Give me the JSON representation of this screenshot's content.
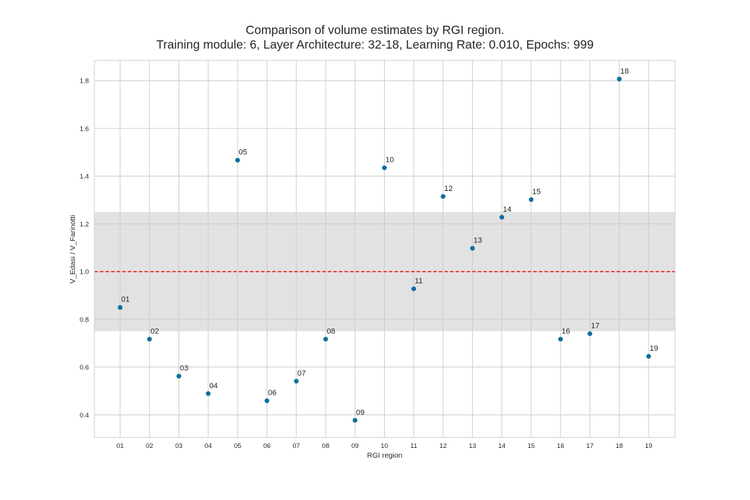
{
  "chart_data": {
    "type": "scatter",
    "title": "Comparison of volume estimates by RGI region.",
    "subtitle": "Training module: 6, Layer Architecture: 32-18, Learning Rate: 0.010, Epochs: 999",
    "xlabel": "RGI region",
    "ylabel": "V_Edasi / V_Farinotti",
    "categories": [
      "01",
      "02",
      "03",
      "04",
      "05",
      "06",
      "07",
      "08",
      "09",
      "10",
      "11",
      "12",
      "13",
      "14",
      "15",
      "16",
      "17",
      "18",
      "19"
    ],
    "values": [
      0.85,
      0.717,
      0.562,
      0.489,
      1.467,
      0.459,
      0.541,
      0.717,
      0.377,
      1.435,
      0.928,
      1.315,
      1.098,
      1.228,
      1.302,
      0.717,
      0.74,
      1.807,
      0.645
    ],
    "point_labels": [
      "01",
      "02",
      "03",
      "04",
      "05",
      "06",
      "07",
      "08",
      "09",
      "10",
      "11",
      "12",
      "13",
      "14",
      "15",
      "16",
      "17",
      "18",
      "19"
    ],
    "ylim": [
      0.305,
      1.885
    ],
    "yticks": [
      "0.4",
      "0.6",
      "0.8",
      "1.0",
      "1.2",
      "1.4",
      "1.6",
      "1.8"
    ],
    "ytick_values": [
      0.4,
      0.6,
      0.8,
      1.0,
      1.2,
      1.4,
      1.6,
      1.8
    ],
    "reference_line": 1.0,
    "shaded_band": [
      0.75,
      1.25
    ],
    "grid": true,
    "colors": {
      "points": "#0d6f9f",
      "reference_line": "#e0281a",
      "band": "#e2e2e2",
      "grid": "#cccccc",
      "frame": "#cccccc"
    }
  }
}
